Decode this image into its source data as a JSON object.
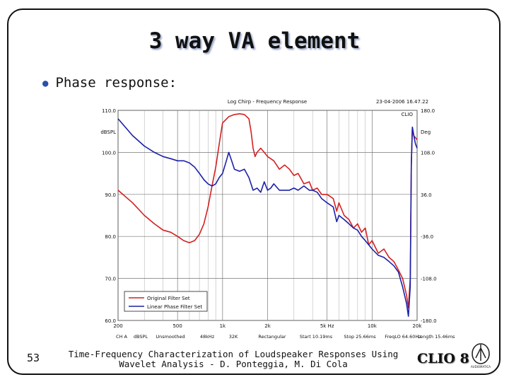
{
  "slide": {
    "title": "3 way VA element",
    "bullet": "Phase response:",
    "page_number": "53",
    "footer_line1": "Time-Frequency Characterization of Loudspeaker Responses Using",
    "footer_line2": "Wavelet Analysis - D. Ponteggia, M. Di Cola",
    "logo_text": "CLIO 8",
    "logo_mark_text": "AUDIOMATICA"
  },
  "chart_data": {
    "type": "line",
    "title": "Log Chirp - Frequency Response",
    "timestamp": "23-04-2006 16.47.22",
    "watermark": "CLIO",
    "ylabel_left": "dBSPL",
    "ylabel_right": "Deg",
    "x_scale": "log",
    "xlim": [
      200,
      20000
    ],
    "ylim_left": [
      60,
      110
    ],
    "ylim_right": [
      -180,
      180
    ],
    "grid": true,
    "x_ticks": [
      {
        "v": 200,
        "label": "200"
      },
      {
        "v": 500,
        "label": "500"
      },
      {
        "v": 1000,
        "label": "1k"
      },
      {
        "v": 2000,
        "label": "2k"
      },
      {
        "v": 5000,
        "label": "5k Hz"
      },
      {
        "v": 10000,
        "label": "10k"
      },
      {
        "v": 20000,
        "label": "20k"
      }
    ],
    "x_minor": [
      300,
      400,
      600,
      700,
      800,
      900,
      3000,
      4000,
      6000,
      7000,
      8000,
      9000
    ],
    "y_ticks_left": [
      {
        "v": 110,
        "label": "110.0"
      },
      {
        "v": 100,
        "label": "100.0"
      },
      {
        "v": 90,
        "label": "90.0"
      },
      {
        "v": 80,
        "label": "80.0"
      },
      {
        "v": 70,
        "label": "70.0"
      },
      {
        "v": 60,
        "label": "60.0"
      }
    ],
    "y_ticks_right": [
      {
        "v": 180,
        "label": "180.0"
      },
      {
        "v": 108,
        "label": "108.0"
      },
      {
        "v": 36,
        "label": "36.0"
      },
      {
        "v": -36,
        "label": "-36.0"
      },
      {
        "v": -108,
        "label": "-108.0"
      },
      {
        "v": -180,
        "label": "-180.0"
      }
    ],
    "legend_position": "bottom-left",
    "series": [
      {
        "name": "Original Filter Set",
        "color": "#d42020",
        "points": [
          [
            200,
            91
          ],
          [
            250,
            88
          ],
          [
            300,
            85
          ],
          [
            350,
            83
          ],
          [
            400,
            81.5
          ],
          [
            450,
            81
          ],
          [
            500,
            80
          ],
          [
            550,
            79
          ],
          [
            600,
            78.5
          ],
          [
            650,
            79
          ],
          [
            700,
            80.5
          ],
          [
            750,
            83
          ],
          [
            800,
            87
          ],
          [
            850,
            92
          ],
          [
            900,
            96.5
          ],
          [
            950,
            102
          ],
          [
            1000,
            107
          ],
          [
            1100,
            108.5
          ],
          [
            1200,
            109
          ],
          [
            1300,
            109.2
          ],
          [
            1400,
            109
          ],
          [
            1500,
            108
          ],
          [
            1550,
            105
          ],
          [
            1600,
            101
          ],
          [
            1650,
            99
          ],
          [
            1700,
            100
          ],
          [
            1800,
            101
          ],
          [
            1900,
            100
          ],
          [
            2000,
            99
          ],
          [
            2200,
            98
          ],
          [
            2400,
            96
          ],
          [
            2600,
            97
          ],
          [
            2800,
            96
          ],
          [
            3000,
            94.5
          ],
          [
            3200,
            95
          ],
          [
            3500,
            92.5
          ],
          [
            3800,
            93
          ],
          [
            4000,
            91
          ],
          [
            4300,
            91.5
          ],
          [
            4600,
            90
          ],
          [
            5000,
            90
          ],
          [
            5500,
            89
          ],
          [
            5800,
            86
          ],
          [
            6000,
            88
          ],
          [
            6500,
            85
          ],
          [
            7000,
            84
          ],
          [
            7500,
            82
          ],
          [
            8000,
            83
          ],
          [
            8500,
            81
          ],
          [
            9000,
            82
          ],
          [
            9500,
            78
          ],
          [
            10000,
            79
          ],
          [
            11000,
            76
          ],
          [
            12000,
            77
          ],
          [
            13000,
            75
          ],
          [
            14000,
            74
          ],
          [
            15000,
            72
          ],
          [
            16000,
            70
          ],
          [
            17000,
            66
          ],
          [
            17500,
            63
          ],
          [
            18000,
            70
          ],
          [
            18300,
            97
          ],
          [
            18600,
            106
          ],
          [
            19000,
            104
          ],
          [
            19500,
            103.5
          ],
          [
            20000,
            103
          ]
        ]
      },
      {
        "name": "Linear Phase Filter Set",
        "color": "#1a20a8",
        "points": [
          [
            200,
            108
          ],
          [
            250,
            104
          ],
          [
            300,
            101.5
          ],
          [
            350,
            100
          ],
          [
            400,
            99
          ],
          [
            450,
            98.5
          ],
          [
            500,
            98
          ],
          [
            550,
            98
          ],
          [
            600,
            97.5
          ],
          [
            650,
            96.5
          ],
          [
            700,
            95
          ],
          [
            750,
            93.5
          ],
          [
            800,
            92.5
          ],
          [
            850,
            92
          ],
          [
            900,
            92.5
          ],
          [
            950,
            94
          ],
          [
            1000,
            95
          ],
          [
            1050,
            97.5
          ],
          [
            1100,
            100
          ],
          [
            1150,
            98
          ],
          [
            1200,
            96
          ],
          [
            1300,
            95.5
          ],
          [
            1400,
            96
          ],
          [
            1500,
            94
          ],
          [
            1600,
            91
          ],
          [
            1700,
            91.5
          ],
          [
            1800,
            90.5
          ],
          [
            1900,
            93
          ],
          [
            2000,
            91
          ],
          [
            2100,
            91.5
          ],
          [
            2200,
            92.5
          ],
          [
            2400,
            91
          ],
          [
            2600,
            91
          ],
          [
            2800,
            91
          ],
          [
            3000,
            91.5
          ],
          [
            3200,
            91
          ],
          [
            3500,
            92
          ],
          [
            3800,
            91
          ],
          [
            4000,
            91
          ],
          [
            4300,
            90.5
          ],
          [
            4600,
            89
          ],
          [
            5000,
            88
          ],
          [
            5500,
            87
          ],
          [
            5800,
            83.5
          ],
          [
            6000,
            85
          ],
          [
            6500,
            84
          ],
          [
            7000,
            83
          ],
          [
            7500,
            82
          ],
          [
            8000,
            81.5
          ],
          [
            8500,
            80
          ],
          [
            9000,
            79
          ],
          [
            9500,
            78
          ],
          [
            10000,
            77
          ],
          [
            11000,
            75.5
          ],
          [
            12000,
            75
          ],
          [
            13000,
            74
          ],
          [
            14000,
            73
          ],
          [
            15000,
            71.5
          ],
          [
            16000,
            68
          ],
          [
            17000,
            64
          ],
          [
            17500,
            61
          ],
          [
            18000,
            68
          ],
          [
            18300,
            97
          ],
          [
            18600,
            106
          ],
          [
            19000,
            104
          ],
          [
            19500,
            102
          ],
          [
            20000,
            101
          ]
        ]
      }
    ],
    "footer_labels": [
      "CH A",
      "dBSPL",
      "Unsmoothed",
      "48kHz",
      "32K",
      "Rectangular",
      "Start 10.19ms",
      "Stop 25.66ms",
      "FreqLO 64.60Hz",
      "Length 15.46ms"
    ]
  }
}
